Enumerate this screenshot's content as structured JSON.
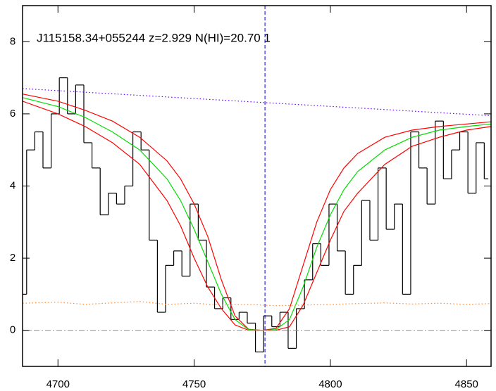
{
  "chart_data": {
    "type": "line",
    "title": "J115158.34+055244 z=2.929 N(HI)=20.70 1",
    "xlim": [
      4687,
      4859
    ],
    "ylim": [
      -1,
      9
    ],
    "xticks": [
      4700,
      4750,
      4800,
      4850
    ],
    "yticks": [
      0,
      2,
      4,
      6,
      8
    ],
    "vline": 4776,
    "vline_color": "#0000cc",
    "series": [
      {
        "color": "#000000",
        "style": "steps",
        "x": [
          4687,
          4690,
          4693,
          4696,
          4699,
          4702,
          4705,
          4708,
          4711,
          4714,
          4717,
          4720,
          4723,
          4726,
          4729,
          4732,
          4735,
          4738,
          4741,
          4744,
          4747,
          4750,
          4753,
          4756,
          4759,
          4762,
          4765,
          4768,
          4771,
          4774,
          4777,
          4780,
          4783,
          4786,
          4789,
          4792,
          4795,
          4798,
          4801,
          4804,
          4807,
          4810,
          4813,
          4816,
          4819,
          4822,
          4825,
          4828,
          4831,
          4834,
          4837,
          4840,
          4843,
          4846,
          4849,
          4852,
          4855,
          4858
        ],
        "values": [
          1.0,
          5.0,
          5.5,
          4.5,
          6.0,
          7.0,
          6.0,
          6.8,
          5.2,
          4.5,
          3.2,
          3.8,
          3.5,
          4.0,
          5.5,
          5.0,
          2.5,
          0.5,
          1.8,
          2.2,
          1.5,
          3.5,
          2.5,
          1.2,
          0.6,
          0.9,
          0.3,
          0.5,
          0.2,
          -0.6,
          0.4,
          0.1,
          0.5,
          -0.5,
          0.6,
          1.4,
          2.4,
          1.8,
          3.5,
          2.2,
          1.0,
          1.8,
          3.6,
          2.5,
          4.5,
          2.8,
          3.5,
          1.0,
          5.5,
          4.5,
          3.5,
          5.8,
          4.2,
          5.0,
          5.5,
          3.8,
          5.2,
          4.2
        ]
      },
      {
        "color": "#ff0000",
        "style": "solid",
        "x": [
          4687,
          4700,
          4710,
          4720,
          4730,
          4740,
          4745,
          4750,
          4755,
          4760,
          4765,
          4770,
          4775,
          4780,
          4785,
          4790,
          4795,
          4800,
          4805,
          4810,
          4820,
          4830,
          4840,
          4850,
          4859
        ],
        "values": [
          6.55,
          6.35,
          6.1,
          5.8,
          5.35,
          4.7,
          4.2,
          3.5,
          2.6,
          1.4,
          0.4,
          0.03,
          0,
          0.05,
          0.6,
          1.8,
          3.0,
          3.9,
          4.5,
          4.9,
          5.35,
          5.55,
          5.65,
          5.72,
          5.78
        ]
      },
      {
        "color": "#ff0000",
        "style": "solid",
        "x": [
          4687,
          4700,
          4710,
          4720,
          4730,
          4740,
          4745,
          4750,
          4755,
          4760,
          4765,
          4770,
          4775,
          4780,
          4785,
          4790,
          4795,
          4800,
          4805,
          4810,
          4820,
          4830,
          4840,
          4850,
          4859
        ],
        "values": [
          6.35,
          6.0,
          5.65,
          5.2,
          4.6,
          3.6,
          2.9,
          2.0,
          1.2,
          0.6,
          0.15,
          0,
          0,
          0,
          0.1,
          0.7,
          1.6,
          2.5,
          3.3,
          3.8,
          4.6,
          5.1,
          5.35,
          5.55,
          5.65
        ]
      },
      {
        "color": "#00dd00",
        "style": "solid",
        "x": [
          4687,
          4700,
          4710,
          4720,
          4730,
          4740,
          4745,
          4750,
          4755,
          4760,
          4765,
          4770,
          4775,
          4780,
          4785,
          4790,
          4795,
          4800,
          4805,
          4810,
          4820,
          4830,
          4840,
          4850,
          4859
        ],
        "values": [
          6.45,
          6.2,
          5.9,
          5.5,
          5.0,
          4.2,
          3.6,
          2.8,
          1.9,
          1.0,
          0.3,
          0.02,
          0,
          0.02,
          0.3,
          1.2,
          2.3,
          3.2,
          3.9,
          4.4,
          5.0,
          5.35,
          5.55,
          5.65,
          5.72
        ]
      },
      {
        "color": "#6600ff",
        "style": "dotted",
        "x": [
          4687,
          4859
        ],
        "values": [
          6.7,
          5.95
        ]
      },
      {
        "color": "#ff8833",
        "style": "dotted",
        "x": [
          4687,
          4700,
          4710,
          4720,
          4730,
          4740,
          4750,
          4760,
          4770,
          4780,
          4790,
          4800,
          4810,
          4820,
          4830,
          4840,
          4850,
          4859
        ],
        "values": [
          0.75,
          0.78,
          0.72,
          0.76,
          0.8,
          0.72,
          0.75,
          0.7,
          0.72,
          0.68,
          0.7,
          0.72,
          0.74,
          0.76,
          0.73,
          0.75,
          0.72,
          0.74
        ]
      },
      {
        "color": "#999999",
        "style": "dashdot",
        "x": [
          4687,
          4859
        ],
        "values": [
          0,
          0
        ]
      }
    ]
  }
}
